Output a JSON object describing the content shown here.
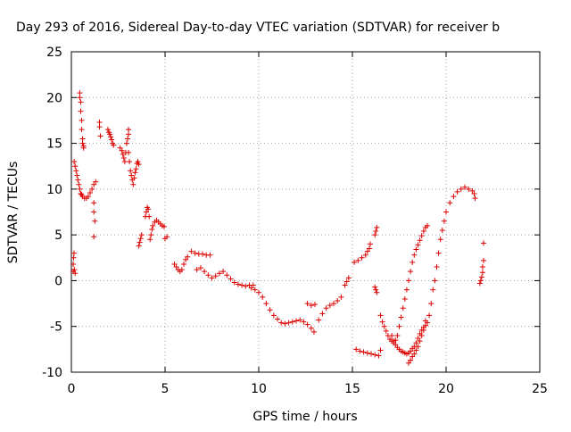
{
  "chart_data": {
    "type": "scatter",
    "title": "Day 293 of 2016, Sidereal Day-to-day VTEC variation (SDTVAR) for receiver b",
    "xlabel": "GPS time / hours",
    "ylabel": "SDTVAR / TECUs",
    "xlim": [
      0,
      25
    ],
    "ylim": [
      -10,
      25
    ],
    "xticks": [
      0,
      5,
      10,
      15,
      20,
      25
    ],
    "yticks": [
      -10,
      -5,
      0,
      5,
      10,
      15,
      20,
      25
    ],
    "grid": true,
    "marker": "+",
    "series": [
      {
        "color": "#dd0000",
        "points": [
          [
            0.1,
            1.0
          ],
          [
            0.1,
            1.8
          ],
          [
            0.12,
            2.5
          ],
          [
            0.14,
            3.0
          ],
          [
            0.16,
            1.2
          ],
          [
            0.2,
            0.8
          ],
          [
            0.15,
            13.0
          ],
          [
            0.2,
            12.5
          ],
          [
            0.25,
            12.0
          ],
          [
            0.3,
            11.5
          ],
          [
            0.35,
            11.0
          ],
          [
            0.4,
            10.5
          ],
          [
            0.45,
            10.0
          ],
          [
            0.5,
            9.5
          ],
          [
            0.55,
            9.4
          ],
          [
            0.45,
            20.5
          ],
          [
            0.45,
            20.0
          ],
          [
            0.5,
            19.5
          ],
          [
            0.5,
            18.5
          ],
          [
            0.55,
            17.5
          ],
          [
            0.55,
            16.5
          ],
          [
            0.6,
            15.5
          ],
          [
            0.6,
            15.0
          ],
          [
            0.65,
            14.7
          ],
          [
            0.65,
            14.5
          ],
          [
            0.6,
            9.2
          ],
          [
            0.7,
            9.0
          ],
          [
            0.8,
            9.0
          ],
          [
            0.9,
            9.2
          ],
          [
            1.0,
            9.6
          ],
          [
            1.1,
            10.0
          ],
          [
            1.2,
            10.5
          ],
          [
            1.3,
            10.8
          ],
          [
            1.2,
            8.5
          ],
          [
            1.2,
            7.5
          ],
          [
            1.25,
            6.5
          ],
          [
            1.2,
            4.8
          ],
          [
            1.5,
            17.3
          ],
          [
            1.5,
            16.8
          ],
          [
            1.55,
            15.8
          ],
          [
            1.95,
            16.5
          ],
          [
            2.0,
            16.2
          ],
          [
            2.05,
            16.0
          ],
          [
            2.1,
            15.7
          ],
          [
            2.15,
            15.4
          ],
          [
            2.2,
            15.0
          ],
          [
            2.25,
            14.8
          ],
          [
            2.6,
            14.5
          ],
          [
            2.7,
            14.2
          ],
          [
            2.75,
            13.8
          ],
          [
            2.8,
            13.4
          ],
          [
            2.85,
            13.0
          ],
          [
            2.9,
            14.0
          ],
          [
            2.95,
            15.0
          ],
          [
            3.0,
            15.5
          ],
          [
            3.05,
            16.0
          ],
          [
            3.05,
            16.5
          ],
          [
            3.05,
            14.0
          ],
          [
            3.1,
            13.0
          ],
          [
            3.15,
            12.0
          ],
          [
            3.2,
            11.5
          ],
          [
            3.25,
            11.0
          ],
          [
            3.3,
            10.5
          ],
          [
            3.35,
            11.2
          ],
          [
            3.4,
            11.8
          ],
          [
            3.45,
            12.2
          ],
          [
            3.5,
            12.8
          ],
          [
            3.55,
            13.0
          ],
          [
            3.6,
            12.7
          ],
          [
            3.6,
            3.8
          ],
          [
            3.65,
            4.2
          ],
          [
            3.7,
            4.6
          ],
          [
            3.75,
            5.0
          ],
          [
            3.95,
            7.0
          ],
          [
            4.0,
            7.5
          ],
          [
            4.05,
            8.0
          ],
          [
            4.1,
            7.8
          ],
          [
            4.15,
            7.0
          ],
          [
            4.2,
            4.5
          ],
          [
            4.25,
            5.0
          ],
          [
            4.3,
            5.6
          ],
          [
            4.35,
            6.0
          ],
          [
            4.45,
            6.4
          ],
          [
            4.55,
            6.6
          ],
          [
            4.65,
            6.4
          ],
          [
            4.75,
            6.2
          ],
          [
            4.85,
            6.0
          ],
          [
            4.95,
            5.9
          ],
          [
            5.0,
            4.6
          ],
          [
            5.1,
            4.8
          ],
          [
            5.5,
            1.8
          ],
          [
            5.6,
            1.5
          ],
          [
            5.7,
            1.2
          ],
          [
            5.8,
            1.0
          ],
          [
            5.9,
            1.2
          ],
          [
            6.0,
            1.8
          ],
          [
            6.1,
            2.3
          ],
          [
            6.2,
            2.6
          ],
          [
            6.4,
            3.2
          ],
          [
            6.6,
            3.0
          ],
          [
            6.8,
            2.9
          ],
          [
            7.0,
            2.9
          ],
          [
            7.2,
            2.8
          ],
          [
            7.4,
            2.8
          ],
          [
            6.7,
            1.2
          ],
          [
            6.9,
            1.4
          ],
          [
            7.1,
            1.0
          ],
          [
            7.3,
            0.6
          ],
          [
            7.5,
            0.3
          ],
          [
            7.7,
            0.5
          ],
          [
            7.9,
            0.8
          ],
          [
            8.1,
            1.0
          ],
          [
            8.3,
            0.6
          ],
          [
            8.5,
            0.2
          ],
          [
            8.7,
            -0.2
          ],
          [
            8.9,
            -0.4
          ],
          [
            9.1,
            -0.5
          ],
          [
            9.3,
            -0.6
          ],
          [
            9.5,
            -0.5
          ],
          [
            9.7,
            -0.5
          ],
          [
            9.6,
            -0.8
          ],
          [
            9.8,
            -1.0
          ],
          [
            10.0,
            -1.3
          ],
          [
            10.2,
            -1.8
          ],
          [
            10.4,
            -2.5
          ],
          [
            10.6,
            -3.2
          ],
          [
            10.8,
            -3.8
          ],
          [
            11.0,
            -4.2
          ],
          [
            11.2,
            -4.6
          ],
          [
            11.4,
            -4.7
          ],
          [
            11.6,
            -4.6
          ],
          [
            11.8,
            -4.5
          ],
          [
            12.0,
            -4.4
          ],
          [
            12.2,
            -4.3
          ],
          [
            12.4,
            -4.5
          ],
          [
            12.6,
            -4.8
          ],
          [
            12.8,
            -5.2
          ],
          [
            12.95,
            -5.6
          ],
          [
            12.6,
            -2.5
          ],
          [
            12.8,
            -2.7
          ],
          [
            13.0,
            -2.6
          ],
          [
            13.2,
            -4.3
          ],
          [
            13.4,
            -3.6
          ],
          [
            13.6,
            -3.0
          ],
          [
            13.8,
            -2.7
          ],
          [
            14.0,
            -2.5
          ],
          [
            14.2,
            -2.2
          ],
          [
            14.4,
            -1.8
          ],
          [
            14.6,
            -0.5
          ],
          [
            14.7,
            -0.1
          ],
          [
            14.8,
            0.3
          ],
          [
            15.1,
            2.0
          ],
          [
            15.3,
            2.2
          ],
          [
            15.5,
            2.5
          ],
          [
            15.7,
            2.8
          ],
          [
            15.8,
            3.2
          ],
          [
            15.9,
            3.5
          ],
          [
            15.95,
            4.0
          ],
          [
            16.2,
            5.0
          ],
          [
            16.25,
            5.4
          ],
          [
            16.3,
            5.8
          ],
          [
            16.2,
            -0.7
          ],
          [
            16.25,
            -1.0
          ],
          [
            16.3,
            -1.3
          ],
          [
            15.2,
            -7.5
          ],
          [
            15.4,
            -7.7
          ],
          [
            15.6,
            -7.8
          ],
          [
            15.8,
            -7.9
          ],
          [
            16.0,
            -8.0
          ],
          [
            16.2,
            -8.1
          ],
          [
            16.4,
            -8.2
          ],
          [
            16.5,
            -7.6
          ],
          [
            16.5,
            -3.8
          ],
          [
            16.6,
            -4.5
          ],
          [
            16.7,
            -5.0
          ],
          [
            16.8,
            -5.5
          ],
          [
            16.9,
            -6.0
          ],
          [
            17.0,
            -6.4
          ],
          [
            17.1,
            -6.6
          ],
          [
            17.2,
            -6.8
          ],
          [
            17.3,
            -6.5
          ],
          [
            17.4,
            -6.0
          ],
          [
            17.5,
            -5.0
          ],
          [
            17.6,
            -4.0
          ],
          [
            17.7,
            -3.0
          ],
          [
            17.8,
            -2.0
          ],
          [
            17.9,
            -1.0
          ],
          [
            18.0,
            0.0
          ],
          [
            18.1,
            1.0
          ],
          [
            18.2,
            2.0
          ],
          [
            18.3,
            2.8
          ],
          [
            18.4,
            3.4
          ],
          [
            18.5,
            3.9
          ],
          [
            18.6,
            4.4
          ],
          [
            18.7,
            4.9
          ],
          [
            18.8,
            5.4
          ],
          [
            18.9,
            5.8
          ],
          [
            19.0,
            6.0
          ],
          [
            17.1,
            -6.0
          ],
          [
            17.2,
            -6.6
          ],
          [
            17.3,
            -7.0
          ],
          [
            17.4,
            -7.3
          ],
          [
            17.5,
            -7.5
          ],
          [
            17.6,
            -7.7
          ],
          [
            17.7,
            -7.8
          ],
          [
            17.8,
            -7.9
          ],
          [
            17.9,
            -8.0
          ],
          [
            18.0,
            -7.9
          ],
          [
            18.1,
            -7.7
          ],
          [
            18.2,
            -7.4
          ],
          [
            18.3,
            -7.2
          ],
          [
            18.4,
            -6.8
          ],
          [
            18.5,
            -6.3
          ],
          [
            18.6,
            -5.8
          ],
          [
            18.7,
            -5.4
          ],
          [
            18.8,
            -5.1
          ],
          [
            18.9,
            -4.9
          ],
          [
            19.0,
            -4.6
          ],
          [
            19.1,
            -3.8
          ],
          [
            19.2,
            -2.5
          ],
          [
            19.3,
            -1.0
          ],
          [
            19.4,
            0.0
          ],
          [
            19.5,
            1.5
          ],
          [
            19.6,
            3.0
          ],
          [
            19.7,
            4.5
          ],
          [
            19.8,
            5.5
          ],
          [
            19.9,
            6.5
          ],
          [
            20.0,
            7.5
          ],
          [
            20.2,
            8.5
          ],
          [
            20.4,
            9.2
          ],
          [
            20.6,
            9.7
          ],
          [
            20.8,
            10.0
          ],
          [
            21.0,
            10.2
          ],
          [
            21.2,
            10.0
          ],
          [
            21.4,
            9.8
          ],
          [
            21.5,
            9.5
          ],
          [
            21.55,
            9.0
          ],
          [
            18.0,
            -9.0
          ],
          [
            18.1,
            -8.7
          ],
          [
            18.2,
            -8.3
          ],
          [
            18.3,
            -8.0
          ],
          [
            18.4,
            -7.6
          ],
          [
            18.5,
            -7.2
          ],
          [
            18.6,
            -6.6
          ],
          [
            18.7,
            -6.0
          ],
          [
            18.8,
            -5.4
          ],
          [
            18.9,
            -4.4
          ],
          [
            21.8,
            -0.3
          ],
          [
            21.85,
            0.0
          ],
          [
            21.9,
            0.4
          ],
          [
            21.95,
            0.9
          ],
          [
            21.95,
            1.5
          ],
          [
            22.0,
            2.2
          ],
          [
            22.0,
            4.1
          ]
        ]
      }
    ]
  }
}
